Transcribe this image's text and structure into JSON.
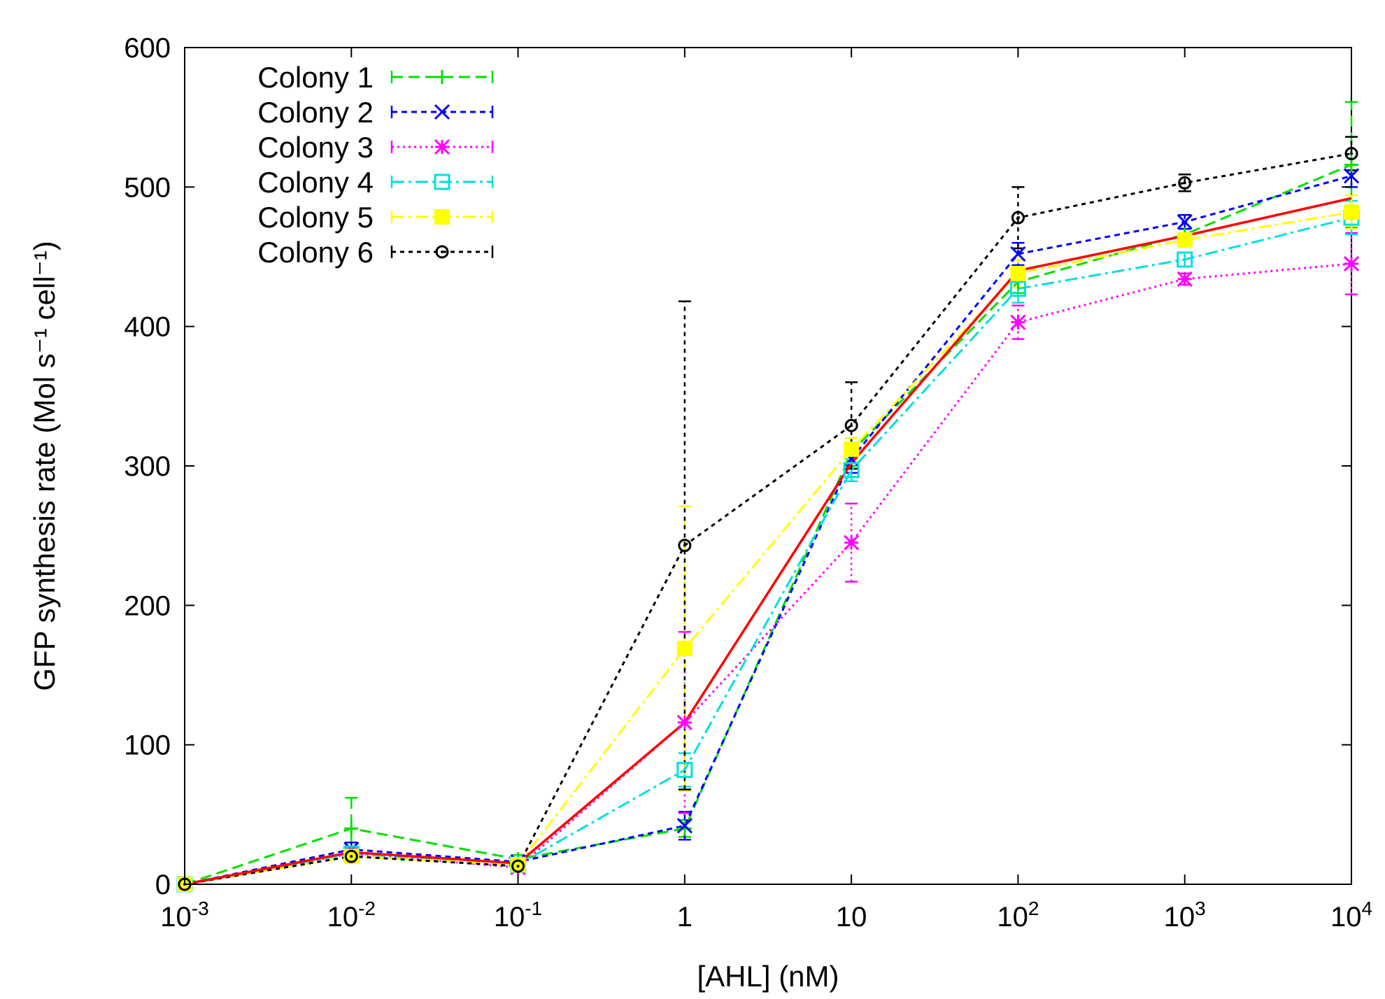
{
  "chart_data": {
    "type": "line",
    "xlabel": "[AHL] (nM)",
    "ylabel": "GFP synthesis rate (Mol s⁻¹ cell⁻¹)",
    "x_scale": "log",
    "x_range": [
      0.001,
      10000
    ],
    "ylim": [
      0,
      600
    ],
    "y_ticks": [
      0,
      100,
      200,
      300,
      400,
      500,
      600
    ],
    "x_ticks": [
      {
        "value": 0.001,
        "base": "10",
        "exp": "-3"
      },
      {
        "value": 0.01,
        "base": "10",
        "exp": "-2"
      },
      {
        "value": 0.1,
        "base": "10",
        "exp": "-1"
      },
      {
        "value": 1,
        "base": "1",
        "exp": ""
      },
      {
        "value": 10,
        "base": "10",
        "exp": ""
      },
      {
        "value": 100,
        "base": "10",
        "exp": "2"
      },
      {
        "value": 1000,
        "base": "10",
        "exp": "3"
      },
      {
        "value": 10000,
        "base": "10",
        "exp": "4"
      }
    ],
    "x": [
      0.001,
      0.01,
      0.1,
      1,
      10,
      100,
      1000,
      10000
    ],
    "legend_position": "top-left",
    "grid": false,
    "series": [
      {
        "name": "Colony 1",
        "color": "#00e000",
        "dash": "16,8",
        "marker": "plus",
        "values": [
          0,
          40,
          18,
          40,
          310,
          432,
          466,
          516
        ],
        "errors": [
          0,
          22,
          3,
          6,
          10,
          8,
          4,
          45
        ]
      },
      {
        "name": "Colony 2",
        "color": "#0000ff",
        "dash": "8,6",
        "marker": "cross",
        "values": [
          0,
          25,
          16,
          42,
          305,
          452,
          475,
          508
        ],
        "errors": [
          0,
          5,
          3,
          10,
          10,
          8,
          5,
          8
        ]
      },
      {
        "name": "Colony 3",
        "color": "#ff00ff",
        "dash": "3,5",
        "marker": "star",
        "values": [
          0,
          22,
          12,
          116,
          245,
          403,
          434,
          445
        ],
        "errors": [
          0,
          4,
          2,
          65,
          28,
          12,
          4,
          22
        ]
      },
      {
        "name": "Colony 4",
        "color": "#00e0e0",
        "dash": "18,6,4,6",
        "marker": "box",
        "values": [
          0,
          22,
          14,
          82,
          297,
          427,
          448,
          478
        ],
        "errors": [
          0,
          4,
          2,
          12,
          8,
          10,
          5,
          12
        ]
      },
      {
        "name": "Colony 5",
        "color": "#ffff00",
        "dash": "18,6,4,6",
        "marker": "filledbox",
        "values": [
          0,
          20,
          14,
          169,
          312,
          438,
          462,
          482
        ],
        "errors": [
          0,
          4,
          2,
          102,
          8,
          10,
          5,
          12
        ]
      },
      {
        "name": "Colony 6",
        "color": "#000000",
        "dash": "6,6",
        "marker": "circle",
        "values": [
          0,
          20,
          13,
          243,
          329,
          478,
          503,
          524
        ],
        "errors": [
          0,
          3,
          2,
          175,
          31,
          22,
          6,
          12
        ]
      }
    ],
    "mean_series": {
      "color": "#ff0000",
      "values": [
        0,
        23,
        15,
        116,
        302,
        440,
        465,
        492
      ]
    }
  }
}
